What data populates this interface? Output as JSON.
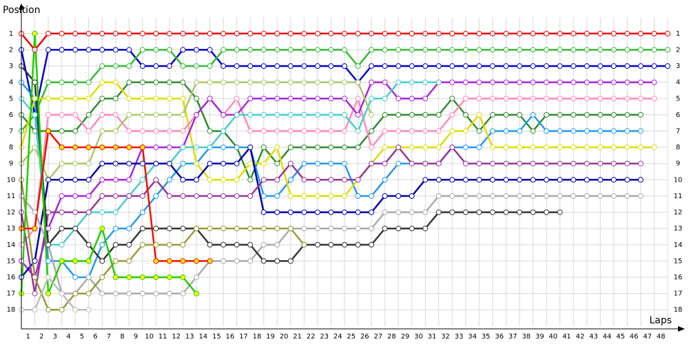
{
  "chart_data": {
    "type": "line",
    "x_label": "Laps",
    "y_label": "Position",
    "x": [
      0,
      1,
      2,
      3,
      4,
      5,
      6,
      7,
      8,
      9,
      10,
      11,
      12,
      13,
      14,
      15,
      16,
      17,
      18,
      19,
      20,
      21,
      22,
      23,
      24,
      25,
      26,
      27,
      28,
      29,
      30,
      31,
      32,
      33,
      34,
      35,
      36,
      37,
      38,
      39,
      40,
      41,
      42,
      43,
      44,
      45,
      46,
      47,
      48
    ],
    "xlim": [
      0,
      48
    ],
    "ylim": [
      18.5,
      0.5
    ],
    "xticks": [
      {
        "value": 0.5,
        "label": "1"
      },
      {
        "value": 1.5,
        "label": "2"
      },
      {
        "value": 2.5,
        "label": "3"
      },
      {
        "value": 3.5,
        "label": "4"
      },
      {
        "value": 4.5,
        "label": "5"
      },
      {
        "value": 5.5,
        "label": "6"
      },
      {
        "value": 6.5,
        "label": "7"
      },
      {
        "value": 7.5,
        "label": "8"
      },
      {
        "value": 8.5,
        "label": "9"
      },
      {
        "value": 9.5,
        "label": "10"
      },
      {
        "value": 10.5,
        "label": "11"
      },
      {
        "value": 11.5,
        "label": "12"
      },
      {
        "value": 12.5,
        "label": "13"
      },
      {
        "value": 13.5,
        "label": "14"
      },
      {
        "value": 14.5,
        "label": "15"
      },
      {
        "value": 15.5,
        "label": "16"
      },
      {
        "value": 16.5,
        "label": "17"
      },
      {
        "value": 17.5,
        "label": "18"
      },
      {
        "value": 18.5,
        "label": "19"
      },
      {
        "value": 19.5,
        "label": "20"
      },
      {
        "value": 20.5,
        "label": "21"
      },
      {
        "value": 21.5,
        "label": "22"
      },
      {
        "value": 22.5,
        "label": "23"
      },
      {
        "value": 23.5,
        "label": "24"
      },
      {
        "value": 24.5,
        "label": "25"
      },
      {
        "value": 25.5,
        "label": "26"
      },
      {
        "value": 26.5,
        "label": "27"
      },
      {
        "value": 27.5,
        "label": "28"
      },
      {
        "value": 28.5,
        "label": "29"
      },
      {
        "value": 29.5,
        "label": "30"
      },
      {
        "value": 30.5,
        "label": "31"
      },
      {
        "value": 31.5,
        "label": "32"
      },
      {
        "value": 32.5,
        "label": "33"
      },
      {
        "value": 33.5,
        "label": "34"
      },
      {
        "value": 34.5,
        "label": "35"
      },
      {
        "value": 35.5,
        "label": "36"
      },
      {
        "value": 36.5,
        "label": "37"
      },
      {
        "value": 37.5,
        "label": "38"
      },
      {
        "value": 38.5,
        "label": "39"
      },
      {
        "value": 39.5,
        "label": "40"
      },
      {
        "value": 40.5,
        "label": "41"
      },
      {
        "value": 41.5,
        "label": "42"
      },
      {
        "value": 42.5,
        "label": "43"
      },
      {
        "value": 43.5,
        "label": "44"
      },
      {
        "value": 44.5,
        "label": "45"
      },
      {
        "value": 45.5,
        "label": "46"
      },
      {
        "value": 46.5,
        "label": "47"
      },
      {
        "value": 47.5,
        "label": "48"
      }
    ],
    "yticks": [
      1,
      2,
      3,
      4,
      5,
      6,
      7,
      8,
      9,
      10,
      11,
      12,
      13,
      14,
      15,
      16,
      17,
      18
    ],
    "grid": true,
    "series": [
      {
        "color": "#ee0000",
        "marker_color": "#ffffff",
        "values": [
          1,
          2,
          1,
          1,
          1,
          1,
          1,
          1,
          1,
          1,
          1,
          1,
          1,
          1,
          1,
          1,
          1,
          1,
          1,
          1,
          1,
          1,
          1,
          1,
          1,
          1,
          1,
          1,
          1,
          1,
          1,
          1,
          1,
          1,
          1,
          1,
          1,
          1,
          1,
          1,
          1,
          1,
          1,
          1,
          1,
          1,
          1,
          1,
          1
        ]
      },
      {
        "color": "#0000cc",
        "marker_color": "#ffffff",
        "values": [
          2,
          6,
          2,
          2,
          2,
          2,
          2,
          2,
          2,
          3,
          3,
          3,
          2,
          2,
          2,
          3,
          3,
          3,
          3,
          3,
          3,
          3,
          3,
          3,
          3,
          4,
          3,
          3,
          3,
          3,
          3,
          3,
          3,
          3,
          3,
          3,
          3,
          3,
          3,
          3,
          3,
          3,
          3,
          3,
          3,
          3,
          3,
          3,
          3
        ]
      },
      {
        "color": "#33bb33",
        "marker_color": "#ffffff",
        "values": [
          7,
          6,
          4,
          4,
          4,
          4,
          3,
          3,
          3,
          2,
          2,
          2,
          3,
          3,
          3,
          2,
          2,
          2,
          2,
          2,
          2,
          2,
          2,
          2,
          2,
          3,
          2,
          2,
          2,
          2,
          2,
          2,
          2,
          2,
          2,
          2,
          2,
          2,
          2,
          2,
          2,
          2,
          2,
          2,
          2,
          2,
          2,
          2,
          2
        ]
      },
      {
        "color": "#2e8b2e",
        "marker_color": "#ffffff",
        "values": [
          6,
          7,
          7,
          7,
          7,
          6,
          5,
          5,
          4,
          4,
          4,
          4,
          4,
          5,
          7,
          7,
          8,
          10,
          8,
          9,
          8,
          8,
          8,
          8,
          8,
          8,
          7,
          6,
          6,
          6,
          6,
          6,
          5,
          6,
          7,
          6,
          6,
          6,
          7,
          6,
          6,
          6,
          6,
          6,
          6,
          6,
          6,
          null,
          null
        ]
      },
      {
        "color": "#2299ee",
        "marker_color": "#ffffff",
        "values": [
          4,
          5,
          15,
          15,
          16,
          16,
          14,
          13,
          13,
          12,
          11,
          10,
          9,
          9,
          8,
          8,
          8,
          8,
          11,
          11,
          10,
          9,
          9,
          9,
          9,
          11,
          11,
          10,
          9,
          9,
          9,
          9,
          8,
          8,
          8,
          7,
          7,
          7,
          6,
          7,
          7,
          7,
          7,
          7,
          7,
          7,
          7,
          null,
          null
        ]
      },
      {
        "color": "#dddd00",
        "marker_color": "#ffffff",
        "values": [
          8,
          5,
          5,
          5,
          5,
          5,
          4,
          4,
          5,
          5,
          5,
          5,
          5,
          9,
          10,
          10,
          10,
          9,
          9,
          8,
          11,
          11,
          11,
          11,
          11,
          10,
          9,
          8,
          8,
          8,
          8,
          8,
          7,
          7,
          6,
          8,
          8,
          8,
          8,
          8,
          8,
          8,
          8,
          8,
          8,
          8,
          8,
          8,
          null
        ]
      },
      {
        "color": "#ff88bb",
        "marker_color": "#ffffff",
        "values": [
          14,
          13,
          6,
          6,
          6,
          7,
          6,
          6,
          7,
          7,
          7,
          7,
          7,
          6,
          5,
          6,
          5,
          7,
          7,
          7,
          7,
          7,
          7,
          7,
          7,
          5,
          8,
          7,
          7,
          7,
          7,
          7,
          6,
          5,
          5,
          5,
          5,
          5,
          5,
          5,
          5,
          5,
          5,
          5,
          5,
          5,
          5,
          5,
          null
        ]
      },
      {
        "color": "#aa22dd",
        "marker_color": "#ffffff",
        "values": [
          15,
          16,
          13,
          11,
          11,
          11,
          10,
          10,
          10,
          8,
          8,
          8,
          8,
          6,
          5,
          6,
          6,
          5,
          5,
          5,
          5,
          5,
          5,
          5,
          5,
          6,
          4,
          4,
          5,
          5,
          5,
          4,
          4,
          4,
          4,
          4,
          4,
          4,
          4,
          4,
          4,
          4,
          4,
          4,
          4,
          4,
          4,
          4,
          null
        ]
      },
      {
        "color": "#44cccc",
        "marker_color": "#ffffff",
        "values": [
          5,
          6,
          14,
          14,
          13,
          12,
          12,
          12,
          11,
          10,
          9,
          9,
          8,
          8,
          8,
          7,
          6,
          6,
          6,
          6,
          6,
          6,
          6,
          6,
          6,
          7,
          5,
          5,
          4,
          4,
          4,
          4,
          null,
          null,
          null,
          null,
          null,
          null,
          null,
          null,
          null,
          null,
          null,
          null,
          null,
          null,
          null,
          null,
          null
        ]
      },
      {
        "color": "#aac866",
        "marker_color": "#ffffff",
        "values": [
          9,
          8,
          10,
          9,
          9,
          9,
          7,
          7,
          6,
          6,
          6,
          6,
          6,
          4,
          4,
          4,
          4,
          4,
          4,
          4,
          4,
          4,
          4,
          4,
          4,
          4,
          6,
          null,
          null,
          null,
          null,
          null,
          null,
          null,
          null,
          null,
          null,
          null,
          null,
          null,
          null,
          null,
          null,
          null,
          null,
          null,
          null,
          null,
          null
        ]
      },
      {
        "color": "#0000aa",
        "marker_color": "#ffffff",
        "values": [
          16,
          15,
          10,
          10,
          10,
          10,
          9,
          9,
          9,
          9,
          9,
          9,
          10,
          10,
          9,
          9,
          9,
          8,
          12,
          12,
          12,
          12,
          12,
          12,
          12,
          12,
          12,
          11,
          11,
          11,
          10,
          10,
          10,
          10,
          10,
          10,
          10,
          10,
          10,
          10,
          10,
          10,
          10,
          10,
          10,
          10,
          10,
          null,
          null
        ]
      },
      {
        "color": "#993399",
        "marker_color": "#ffffff",
        "values": [
          12,
          17,
          12,
          12,
          12,
          12,
          11,
          11,
          11,
          11,
          10,
          11,
          11,
          11,
          11,
          11,
          11,
          11,
          10,
          10,
          9,
          10,
          10,
          10,
          10,
          10,
          9,
          9,
          8,
          9,
          9,
          9,
          8,
          9,
          9,
          9,
          9,
          9,
          9,
          9,
          9,
          9,
          9,
          9,
          9,
          9,
          9,
          null,
          null
        ]
      },
      {
        "color": "#aaaaaa",
        "marker_color": "#ffffff",
        "values": [
          11,
          12,
          14,
          17,
          17,
          16,
          17,
          17,
          17,
          17,
          17,
          17,
          17,
          16,
          15,
          15,
          15,
          15,
          14,
          14,
          13,
          13,
          13,
          13,
          13,
          13,
          13,
          12,
          12,
          12,
          12,
          11,
          11,
          11,
          11,
          11,
          11,
          11,
          11,
          11,
          11,
          11,
          11,
          11,
          11,
          11,
          11,
          null,
          null
        ]
      },
      {
        "color": "#333333",
        "marker_color": "#ffffff",
        "values": [
          3,
          4,
          14,
          13,
          13,
          14,
          15,
          14,
          14,
          13,
          13,
          13,
          13,
          13,
          14,
          14,
          14,
          14,
          15,
          15,
          15,
          14,
          14,
          14,
          14,
          14,
          14,
          13,
          13,
          13,
          13,
          12,
          12,
          12,
          12,
          12,
          12,
          12,
          12,
          12,
          12,
          null,
          null,
          null,
          null,
          null,
          null,
          null,
          null
        ]
      },
      {
        "color": "#999933",
        "marker_color": "#ffffff",
        "values": [
          10,
          16,
          18,
          18,
          17,
          17,
          16,
          15,
          15,
          14,
          14,
          14,
          14,
          13,
          13,
          13,
          13,
          13,
          13,
          13,
          13,
          14,
          null,
          null,
          null,
          null,
          null,
          null,
          null,
          null,
          null,
          null,
          null,
          null,
          null,
          null,
          null,
          null,
          null,
          null,
          null,
          null,
          null,
          null,
          null,
          null,
          null,
          null,
          null
        ]
      },
      {
        "color": "#22cc00",
        "marker_color": "#ffff00",
        "values": [
          17,
          1,
          17,
          15,
          15,
          15,
          13,
          16,
          16,
          16,
          16,
          16,
          16,
          17,
          null,
          null,
          null,
          null,
          null,
          null,
          null,
          null,
          null,
          null,
          null,
          null,
          null,
          null,
          null,
          null,
          null,
          null,
          null,
          null,
          null,
          null,
          null,
          null,
          null,
          null,
          null,
          null,
          null,
          null,
          null,
          null,
          null,
          null,
          null
        ]
      },
      {
        "color": "#ee1100",
        "marker_color": "#ffee00",
        "values": [
          13,
          13,
          7,
          8,
          8,
          8,
          8,
          8,
          8,
          8,
          15,
          15,
          15,
          15,
          15,
          null,
          null,
          null,
          null,
          null,
          null,
          null,
          null,
          null,
          null,
          null,
          null,
          null,
          null,
          null,
          null,
          null,
          null,
          null,
          null,
          null,
          null,
          null,
          null,
          null,
          null,
          null,
          null,
          null,
          null,
          null,
          null,
          null,
          null
        ]
      },
      {
        "color": "#bbbbbb",
        "marker_color": "#ffffff",
        "values": [
          18,
          18,
          16,
          17,
          18,
          18,
          null,
          null,
          null,
          null,
          null,
          null,
          null,
          null,
          null,
          null,
          null,
          null,
          null,
          null,
          null,
          null,
          null,
          null,
          null,
          null,
          null,
          null,
          null,
          null,
          null,
          null,
          null,
          null,
          null,
          null,
          null,
          null,
          null,
          null,
          null,
          null,
          null,
          null,
          null,
          null,
          null,
          null,
          null
        ]
      }
    ]
  }
}
